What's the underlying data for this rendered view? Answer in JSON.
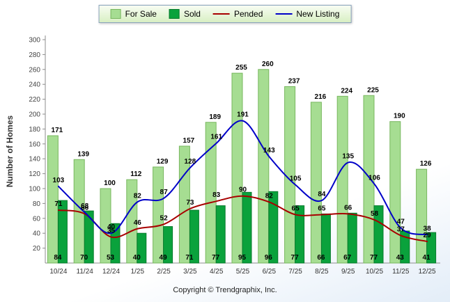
{
  "chart_data": {
    "type": "bar",
    "title": "",
    "xlabel": "",
    "ylabel": "Number of Homes",
    "ylim": [
      0,
      300
    ],
    "ytick_step": 20,
    "grid": false,
    "legend_position": "top-center",
    "footer": "Copyright © Trendgraphix, Inc.",
    "categories": [
      "10/24",
      "11/24",
      "12/24",
      "1/25",
      "2/25",
      "3/25",
      "4/25",
      "5/25",
      "6/25",
      "7/25",
      "8/25",
      "9/25",
      "10/25",
      "11/25",
      "12/25"
    ],
    "series": [
      {
        "name": "For Sale",
        "type": "bar",
        "color": "#a6dd92",
        "border": "#78b75f",
        "values": [
          171,
          139,
          100,
          112,
          129,
          157,
          189,
          255,
          260,
          237,
          216,
          224,
          225,
          190,
          126
        ],
        "label_position": "above-bar"
      },
      {
        "name": "Sold",
        "type": "bar",
        "color": "#0aa23c",
        "border": "#077a2c",
        "values": [
          84,
          70,
          53,
          40,
          49,
          71,
          77,
          95,
          96,
          77,
          66,
          67,
          77,
          43,
          41
        ],
        "label_position": "bar-base"
      },
      {
        "name": "Pended",
        "type": "line",
        "color": "#a80000",
        "values": [
          71,
          66,
          35,
          46,
          52,
          73,
          83,
          90,
          82,
          65,
          65,
          66,
          58,
          37,
          29
        ],
        "label_position": "above-point"
      },
      {
        "name": "New Listing",
        "type": "line",
        "color": "#0000c8",
        "values": [
          103,
          68,
          40,
          82,
          87,
          128,
          161,
          191,
          143,
          105,
          84,
          135,
          106,
          47,
          38
        ],
        "label_position": "above-point"
      }
    ],
    "styles": {
      "axis_color": "#8c8c8c",
      "tick_label_color": "#444444",
      "value_label_color": "#000000",
      "category_label_color": "#333333"
    }
  }
}
